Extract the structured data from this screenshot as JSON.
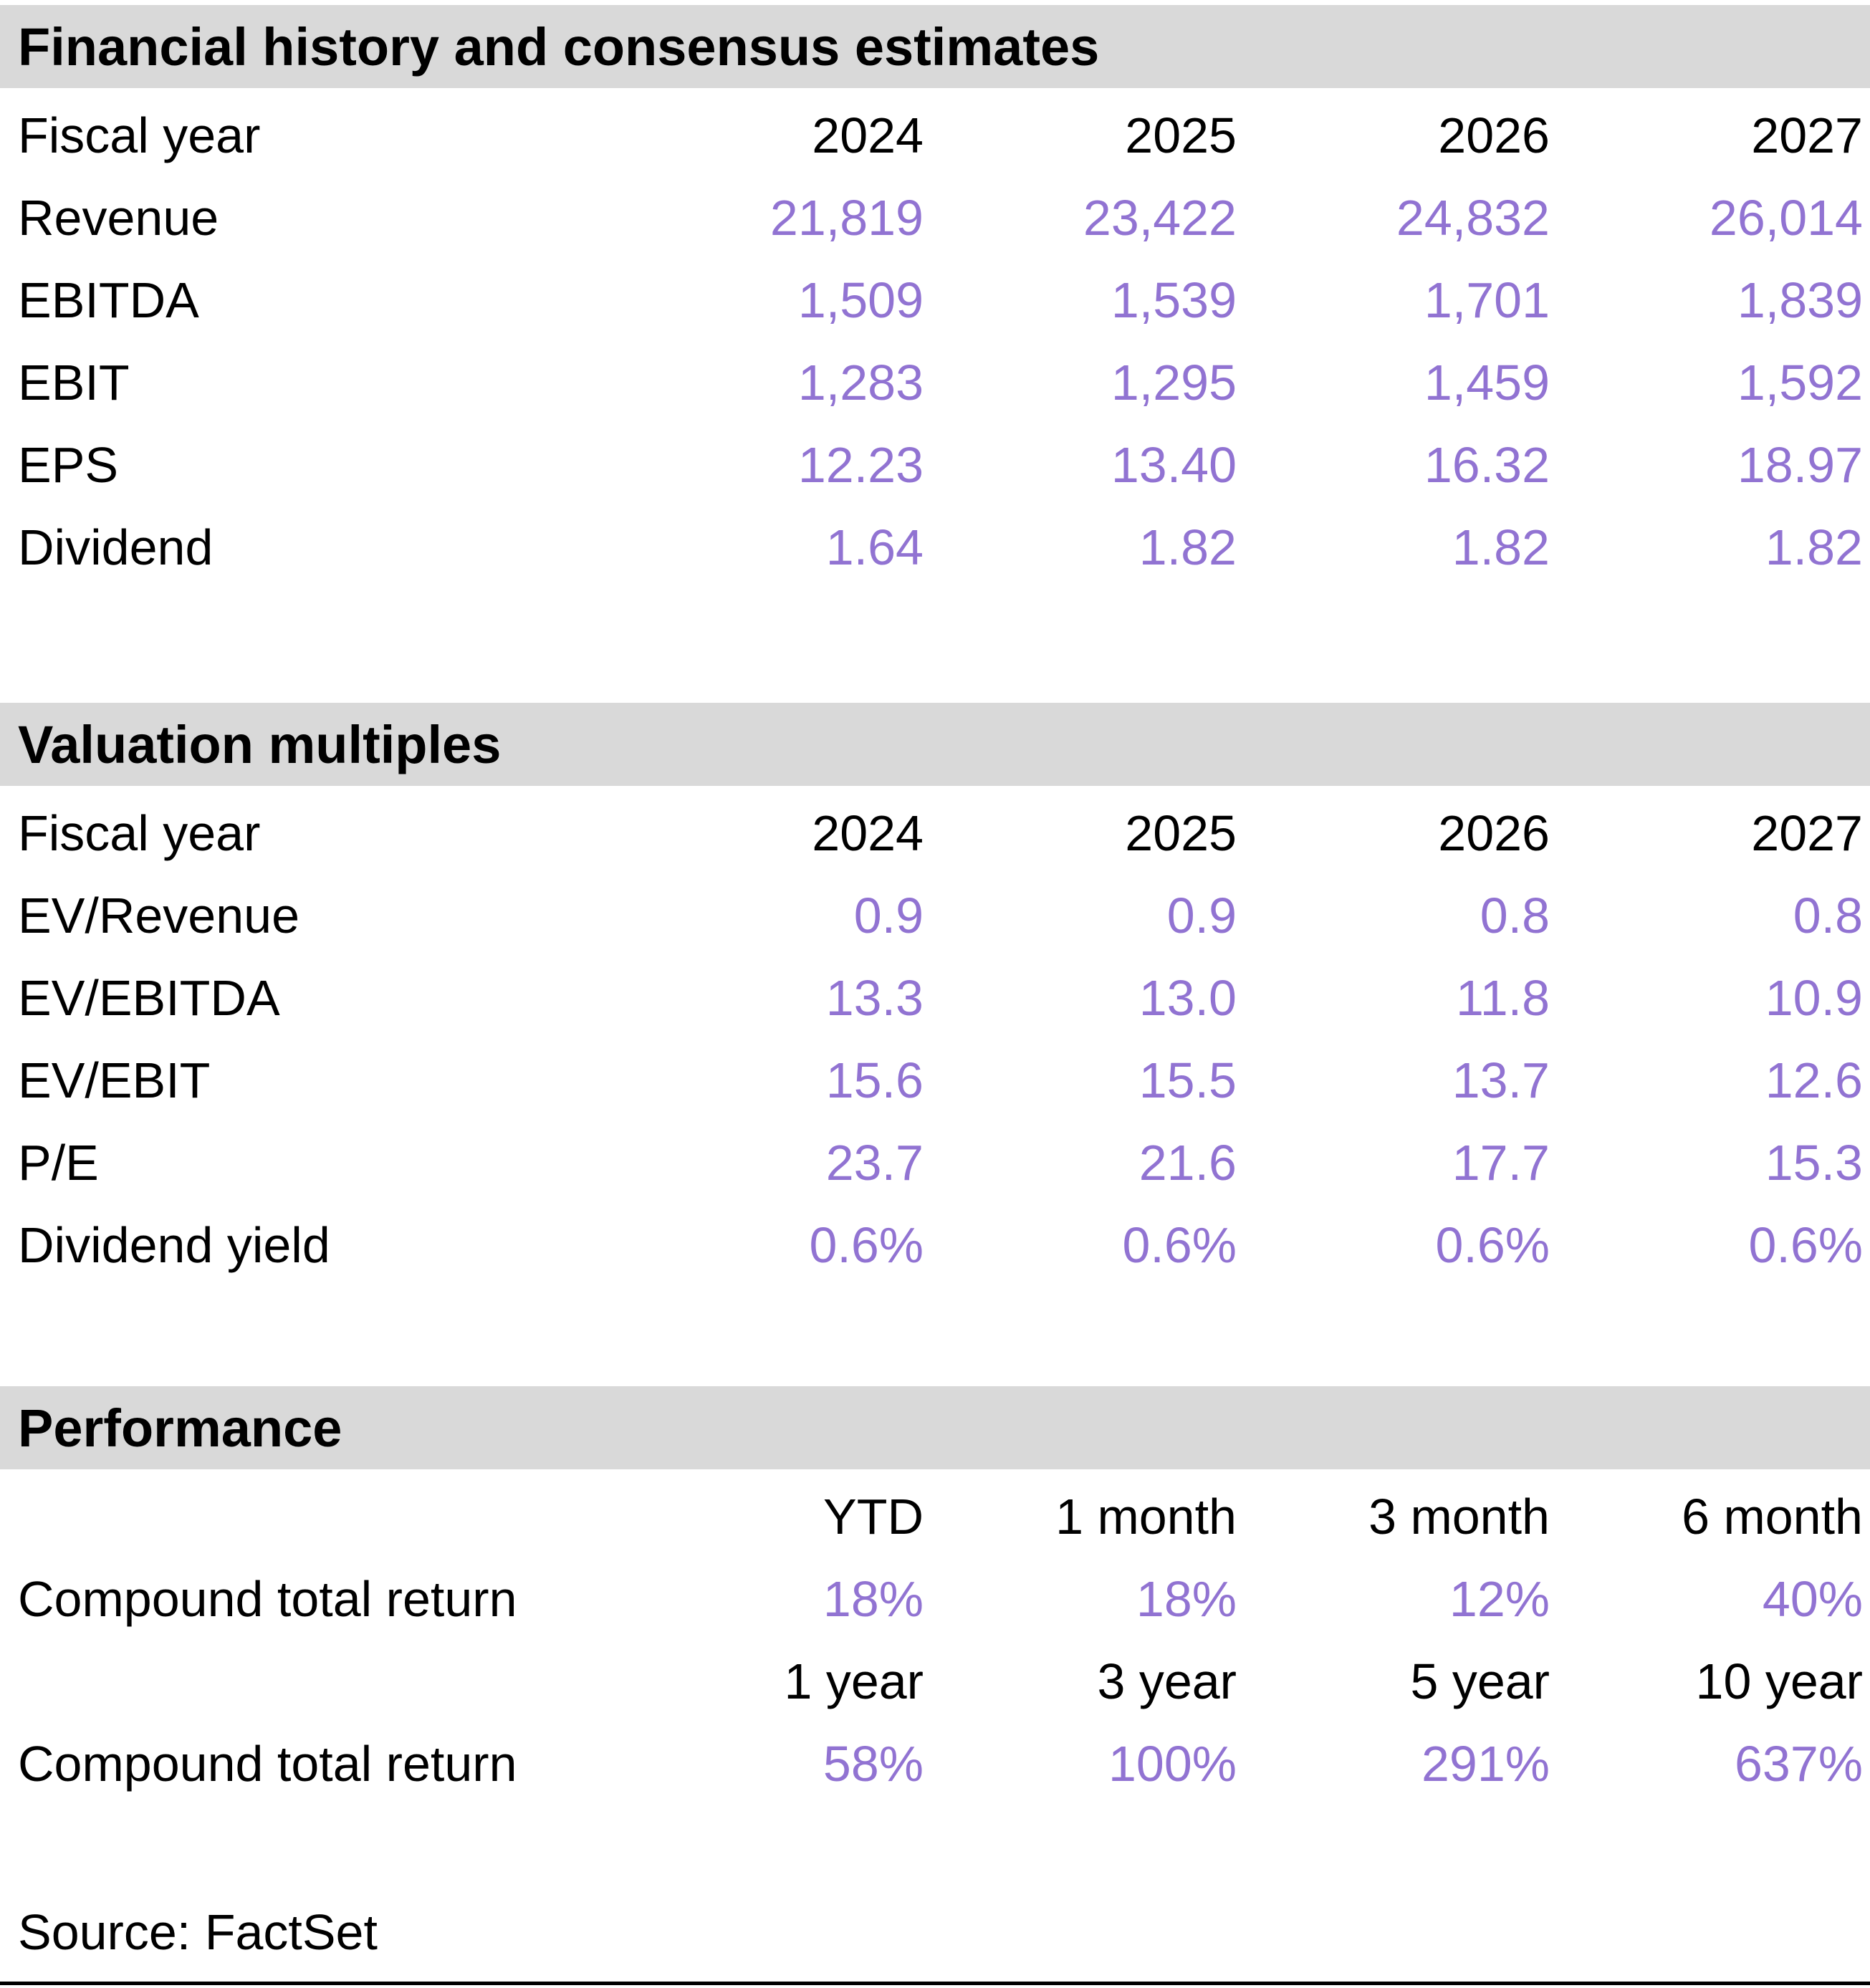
{
  "colors": {
    "accent_purple": "#9173d2",
    "section_header_bg": "#d9d9d9",
    "text_black": "#000000"
  },
  "tables": [
    {
      "title": "Financial history and consensus estimates",
      "header": {
        "label": "Fiscal year",
        "values": [
          "2024",
          "2025",
          "2026",
          "2027"
        ]
      },
      "rows": [
        {
          "label": "Revenue",
          "values": [
            "21,819",
            "23,422",
            "24,832",
            "26,014"
          ]
        },
        {
          "label": "EBITDA",
          "values": [
            "1,509",
            "1,539",
            "1,701",
            "1,839"
          ]
        },
        {
          "label": "EBIT",
          "values": [
            "1,283",
            "1,295",
            "1,459",
            "1,592"
          ]
        },
        {
          "label": "EPS",
          "values": [
            "12.23",
            "13.40",
            "16.32",
            "18.97"
          ]
        },
        {
          "label": "Dividend",
          "values": [
            "1.64",
            "1.82",
            "1.82",
            "1.82"
          ]
        }
      ]
    },
    {
      "title": "Valuation multiples",
      "header": {
        "label": "Fiscal year",
        "values": [
          "2024",
          "2025",
          "2026",
          "2027"
        ]
      },
      "rows": [
        {
          "label": "EV/Revenue",
          "values": [
            "0.9",
            "0.9",
            "0.8",
            "0.8"
          ]
        },
        {
          "label": "EV/EBITDA",
          "values": [
            "13.3",
            "13.0",
            "11.8",
            "10.9"
          ]
        },
        {
          "label": "EV/EBIT",
          "values": [
            "15.6",
            "15.5",
            "13.7",
            "12.6"
          ]
        },
        {
          "label": "P/E",
          "values": [
            "23.7",
            "21.6",
            "17.7",
            "15.3"
          ]
        },
        {
          "label": "Dividend yield",
          "values": [
            "0.6%",
            "0.6%",
            "0.6%",
            "0.6%"
          ]
        }
      ]
    }
  ],
  "performance": {
    "title": "Performance",
    "groups": [
      {
        "periods": [
          "YTD",
          "1 month",
          "3 month",
          "6 month"
        ],
        "label": "Compound total return",
        "values": [
          "18%",
          "18%",
          "12%",
          "40%"
        ]
      },
      {
        "periods": [
          "1 year",
          "3 year",
          "5 year",
          "10 year"
        ],
        "label": "Compound total return",
        "values": [
          "58%",
          "100%",
          "291%",
          "637%"
        ]
      }
    ]
  },
  "source_note": "Source: FactSet"
}
